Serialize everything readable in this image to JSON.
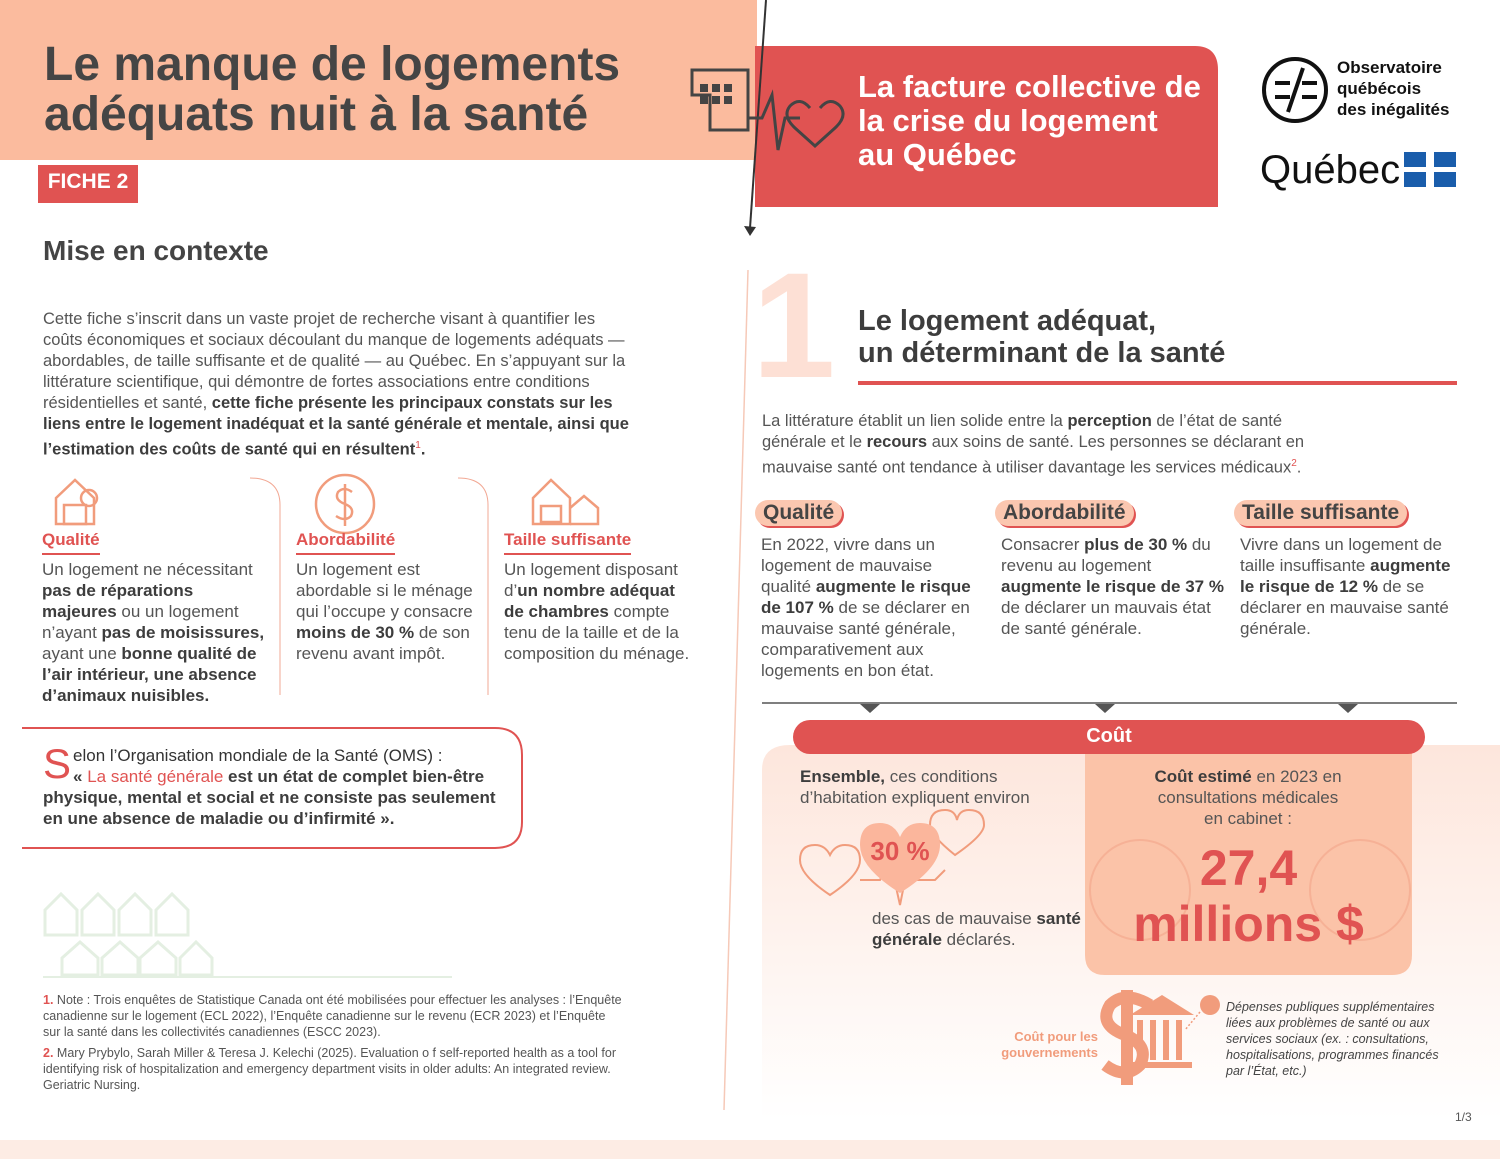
{
  "header": {
    "title": [
      "Le manque de logements",
      "adéquats nuit à la santé"
    ],
    "badge": "FICHE 2",
    "banner": [
      "La facture collective de",
      "la crise du logement",
      "au Québec"
    ],
    "observatoire": [
      "Observatoire",
      "québécois",
      "des inégalités"
    ],
    "quebec": "Québec"
  },
  "context": {
    "heading": "Mise en contexte",
    "paragraph": [
      "Cette fiche s’inscrit dans un vaste projet de recherche visant à quantifier les coûts économiques et sociaux découlant du manque de logements adéquats — abordables, de taille suffisante et de qualité — au Québec. En s’appuyant sur la littérature scientifique, qui démontre de fortes associations entre conditions résidentielles et santé, ",
      "cette fiche présente les principaux constats sur les liens entre le logement inadéquat et la santé générale et mentale, ainsi que l’estimation des coûts de santé qui en résultent",
      "1",
      "."
    ]
  },
  "pillars": [
    {
      "title": "Qualité",
      "text": [
        "Un logement ne nécessitant ",
        "pas de réparations majeures",
        " ou un logement n’ayant ",
        "pas de moisissures,",
        " ayant une ",
        "bonne qualité de l’air intérieur, une absence d’animaux nuisibles."
      ]
    },
    {
      "title": "Abordabilité",
      "text": [
        "Un logement est abordable si le ménage qui l’occupe y consacre ",
        "moins de 30 %",
        " de son revenu avant impôt."
      ]
    },
    {
      "title": "Taille suffisante",
      "text": [
        "Un logement disposant d’",
        "un nombre adéquat de chambres",
        " compte tenu de la taille et de la composition du ménage."
      ]
    }
  ],
  "quote": {
    "initial": "S",
    "text": [
      "elon l’Organisation mondiale de la Santé (OMS) :",
      "« ",
      "La santé générale",
      " est un état de complet bien-être physique, mental et social et ne consiste pas seulement en une absence de maladie ou d’infirmité",
      " »."
    ]
  },
  "footnotes": [
    {
      "number": "1.",
      "text": "Note : Trois enquêtes de Statistique Canada ont été mobilisées pour effectuer les analyses : l’Enquête canadienne sur le logement (ECL 2022), l’Enquête canadienne sur le revenu (ECR 2023) et l’Enquête sur la santé dans les collectivités canadiennes (ESCC 2023)."
    },
    {
      "number": "2.",
      "text": "Mary Prybylo, Sarah Miller & Teresa J. Kelechi (2025). Evaluation o f self-reported health as a tool for identifying risk of hospitalization and emergency department visits in older adults: An integrated review. Geriatric Nursing."
    }
  ],
  "section": {
    "number": "1",
    "heading": [
      "Le logement adéquat,",
      "un déterminant de la santé"
    ],
    "paragraph": [
      "La littérature établit un lien solide entre la ",
      "perception",
      " de l’état de santé générale et le ",
      "recours",
      " aux soins de santé. Les personnes se déclarant en mauvaise santé ont tendance à utiliser davantage les services médicaux",
      "2",
      "."
    ]
  },
  "findings": [
    {
      "label": "Qualité",
      "text": [
        "En 2022, vivre dans un logement de mauvaise qualité ",
        "augmente le risque de 107 %",
        " de se déclarer en mauvaise santé générale, comparativement aux logements en bon état."
      ]
    },
    {
      "label": "Abordabilité",
      "text": [
        "Consacrer ",
        "plus de 30 %",
        " du revenu au logement ",
        "augmente le risque de 37 %",
        " de déclarer un mauvais état de santé générale."
      ]
    },
    {
      "label": "Taille suffisante",
      "text": [
        "Vivre dans un logement de taille insuffisante ",
        "augmente le risque de 12 %",
        " de se déclarer en mauvaise santé générale."
      ]
    }
  ],
  "cost": {
    "heading": "Coût",
    "left": [
      "Ensemble,",
      " ces conditions d’habitation expliquent environ"
    ],
    "percent": "30 %",
    "after": [
      "des cas de mauvaise ",
      "santé générale",
      " déclarés."
    ],
    "right": [
      "Coût estimé",
      " en 2023 en consultations médicales en cabinet :"
    ],
    "amount": [
      "27,4",
      "millions $"
    ],
    "government": "Coût pour les gouvernements",
    "note": "Dépenses publiques supplémentaires liées aux problèmes de santé ou aux services sociaux (ex. : consultations, hospitalisations, programmes financés par l’État, etc.)"
  },
  "page": "1/3"
}
